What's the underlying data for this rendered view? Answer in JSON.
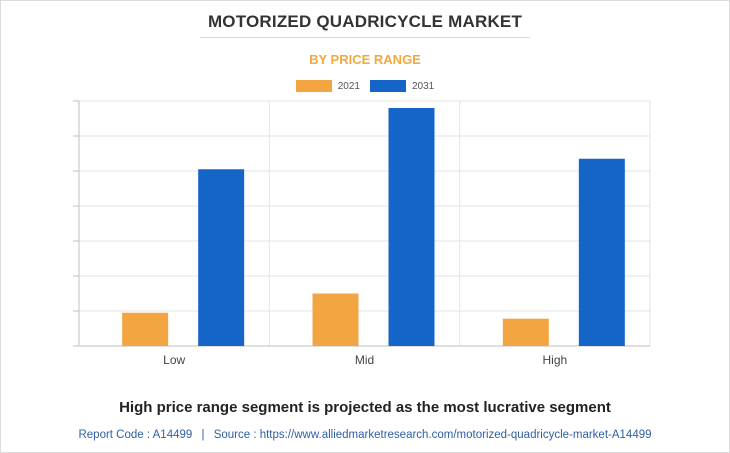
{
  "title": "MOTORIZED QUADRICYCLE MARKET",
  "subtitle": "BY PRICE RANGE",
  "footer": {
    "headline": "High price range segment is projected as the most lucrative segment",
    "report_code_label": "Report Code : A14499",
    "separator": "|",
    "source_label": "Source : https://www.alliedmarketresearch.com/motorized-quadricycle-market-A14499"
  },
  "colors": {
    "series_2021": "#f2a541",
    "series_2031": "#1565c8",
    "grid": "#e3e3e3",
    "axis": "#bfbfbf"
  },
  "chart_data": {
    "type": "bar",
    "categories": [
      "Low",
      "Mid",
      "High"
    ],
    "series": [
      {
        "name": "2021",
        "values": [
          0.95,
          1.5,
          0.78
        ]
      },
      {
        "name": "2031",
        "values": [
          5.05,
          6.8,
          5.35
        ]
      }
    ],
    "ylim": [
      0,
      7
    ],
    "ytick_count": 7,
    "grid": true,
    "legend_position": "top-center",
    "xlabel": "",
    "ylabel": ""
  }
}
